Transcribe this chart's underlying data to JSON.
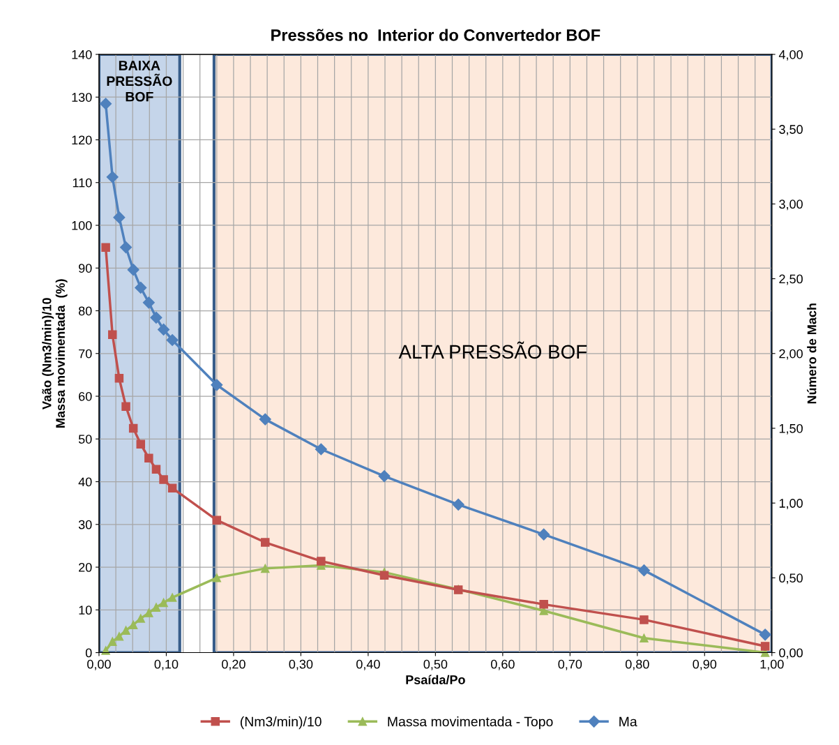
{
  "chart_data": {
    "type": "line",
    "title": "Pressões no  Interior do Convertedor BOF",
    "xlabel": "Psaída/Po",
    "ylabel": "Vaão (Nm3/min)/10\nMassa movimentada  (%)",
    "y2label": "Número de Mach",
    "xlim": [
      0,
      1
    ],
    "ylim": [
      0,
      140
    ],
    "y2lim": [
      0,
      4
    ],
    "xticks": [
      {
        "value": 0,
        "label": "0,00"
      },
      {
        "value": 0.025,
        "label": null
      },
      {
        "value": 0.05,
        "label": null
      },
      {
        "value": 0.075,
        "label": null
      },
      {
        "value": 0.1,
        "label": "0,10"
      },
      {
        "value": 0.125,
        "label": null
      },
      {
        "value": 0.15,
        "label": null
      },
      {
        "value": 0.175,
        "label": null
      },
      {
        "value": 0.2,
        "label": "0,20"
      },
      {
        "value": 0.225,
        "label": null
      },
      {
        "value": 0.25,
        "label": null
      },
      {
        "value": 0.275,
        "label": null
      },
      {
        "value": 0.3,
        "label": "0,30"
      },
      {
        "value": 0.325,
        "label": null
      },
      {
        "value": 0.35,
        "label": null
      },
      {
        "value": 0.375,
        "label": null
      },
      {
        "value": 0.4,
        "label": "0,40"
      },
      {
        "value": 0.425,
        "label": null
      },
      {
        "value": 0.45,
        "label": null
      },
      {
        "value": 0.475,
        "label": null
      },
      {
        "value": 0.5,
        "label": "0,50"
      },
      {
        "value": 0.525,
        "label": null
      },
      {
        "value": 0.55,
        "label": null
      },
      {
        "value": 0.575,
        "label": null
      },
      {
        "value": 0.6,
        "label": "0,60"
      },
      {
        "value": 0.625,
        "label": null
      },
      {
        "value": 0.65,
        "label": null
      },
      {
        "value": 0.675,
        "label": null
      },
      {
        "value": 0.7,
        "label": "0,70"
      },
      {
        "value": 0.725,
        "label": null
      },
      {
        "value": 0.75,
        "label": null
      },
      {
        "value": 0.775,
        "label": null
      },
      {
        "value": 0.8,
        "label": "0,80"
      },
      {
        "value": 0.825,
        "label": null
      },
      {
        "value": 0.85,
        "label": null
      },
      {
        "value": 0.875,
        "label": null
      },
      {
        "value": 0.9,
        "label": "0,90"
      },
      {
        "value": 0.925,
        "label": null
      },
      {
        "value": 0.95,
        "label": null
      },
      {
        "value": 0.975,
        "label": null
      },
      {
        "value": 1,
        "label": "1,00"
      }
    ],
    "yticks": [
      0,
      10,
      20,
      30,
      40,
      50,
      60,
      70,
      80,
      90,
      100,
      110,
      120,
      130,
      140
    ],
    "y2ticks": [
      {
        "value": 0,
        "label": "0,00"
      },
      {
        "value": 0.5,
        "label": "0,50"
      },
      {
        "value": 1,
        "label": "1,00"
      },
      {
        "value": 1.5,
        "label": "1,50"
      },
      {
        "value": 2,
        "label": "2,00"
      },
      {
        "value": 2.5,
        "label": "2,50"
      },
      {
        "value": 3,
        "label": "3,00"
      },
      {
        "value": 3.5,
        "label": "3,50"
      },
      {
        "value": 4,
        "label": "4,00"
      }
    ],
    "x": [
      0.01,
      0.02,
      0.03,
      0.04,
      0.051,
      0.062,
      0.074,
      0.085,
      0.096,
      0.109,
      0.175,
      0.247,
      0.33,
      0.424,
      0.534,
      0.661,
      0.81,
      0.99
    ],
    "series": [
      {
        "name": "(Nm3/min)/10",
        "color": "#c0504d",
        "marker": "square",
        "values": [
          94.8,
          74.4,
          64.2,
          57.6,
          52.5,
          48.8,
          45.5,
          42.9,
          40.5,
          38.5,
          31.0,
          25.8,
          21.4,
          18.1,
          14.7,
          11.3,
          7.7,
          1.5
        ]
      },
      {
        "name": "Massa movimentada - Topo",
        "color": "#9bbb59",
        "marker": "triangle",
        "values": [
          0.5,
          2.6,
          3.8,
          5.2,
          6.5,
          8.0,
          9.3,
          10.6,
          11.7,
          12.9,
          17.5,
          19.7,
          20.4,
          18.8,
          14.8,
          9.8,
          3.4,
          0
        ]
      },
      {
        "name": "Ma",
        "color": "#4f81bd",
        "marker": "diamond",
        "axis": "y2",
        "values": [
          3.67,
          3.18,
          2.91,
          2.71,
          2.56,
          2.44,
          2.34,
          2.24,
          2.16,
          2.09,
          1.79,
          1.56,
          1.36,
          1.18,
          0.99,
          0.79,
          0.55,
          0.12
        ]
      }
    ],
    "bands": [
      {
        "axis": "x",
        "from": 0,
        "to": 0.12,
        "label": "BAIXA\nPRESSÃO\nBOF",
        "color": "#c5d5ea"
      },
      {
        "axis": "x",
        "from": 0.171,
        "to": 1,
        "label": "ALTA PRESSÃO BOF",
        "color": "#fde9dc"
      }
    ],
    "grid": true,
    "legend": "bottom",
    "line_style": "solid"
  }
}
